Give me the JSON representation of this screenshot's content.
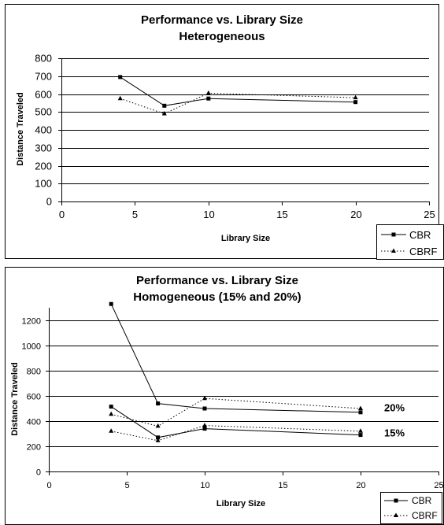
{
  "chart_data": [
    {
      "type": "line",
      "title": "Performance vs. Library Size",
      "subtitle": "Heterogeneous",
      "xlabel": "Library Size",
      "ylabel": "Distance Traveled",
      "xlim": [
        0,
        25
      ],
      "ylim": [
        0,
        800
      ],
      "xticks": [
        0,
        5,
        10,
        15,
        20,
        25
      ],
      "yticks": [
        0,
        100,
        200,
        300,
        400,
        500,
        600,
        700,
        800
      ],
      "grid": "horizontal",
      "legend_position": "bottom-right",
      "series": [
        {
          "name": "CBR",
          "style": "solid",
          "marker": "square",
          "x": [
            4,
            7,
            10,
            20
          ],
          "y": [
            695,
            535,
            575,
            555
          ]
        },
        {
          "name": "CBRF",
          "style": "dotted",
          "marker": "triangle",
          "x": [
            4,
            7,
            10,
            20
          ],
          "y": [
            575,
            490,
            605,
            580
          ]
        }
      ]
    },
    {
      "type": "line",
      "title": "Performance vs. Library Size",
      "subtitle": "Homogeneous (15% and 20%)",
      "xlabel": "Library Size",
      "ylabel": "Distance Traveled",
      "xlim": [
        0,
        25
      ],
      "ylim": [
        0,
        1300
      ],
      "xticks": [
        0,
        5,
        10,
        15,
        20,
        25
      ],
      "yticks": [
        0,
        200,
        400,
        600,
        800,
        1000,
        1200
      ],
      "grid": "horizontal",
      "legend_position": "bottom-right",
      "annotations": [
        {
          "text": "20%",
          "x": 20,
          "y": 510
        },
        {
          "text": "15%",
          "x": 20,
          "y": 310
        }
      ],
      "series": [
        {
          "name": "CBR",
          "style": "solid",
          "marker": "square",
          "x": [
            4,
            7,
            10,
            20
          ],
          "y": [
            1330,
            540,
            500,
            470
          ]
        },
        {
          "name": "CBRF",
          "style": "dotted",
          "marker": "triangle",
          "x": [
            4,
            7,
            10,
            20
          ],
          "y": [
            455,
            360,
            580,
            500
          ]
        },
        {
          "name": "",
          "style": "solid",
          "marker": "square",
          "x": [
            4,
            7,
            10,
            20
          ],
          "y": [
            515,
            270,
            340,
            290
          ]
        },
        {
          "name": "",
          "style": "dotted",
          "marker": "triangle",
          "x": [
            4,
            7,
            10,
            20
          ],
          "y": [
            320,
            245,
            365,
            320
          ]
        }
      ]
    }
  ]
}
